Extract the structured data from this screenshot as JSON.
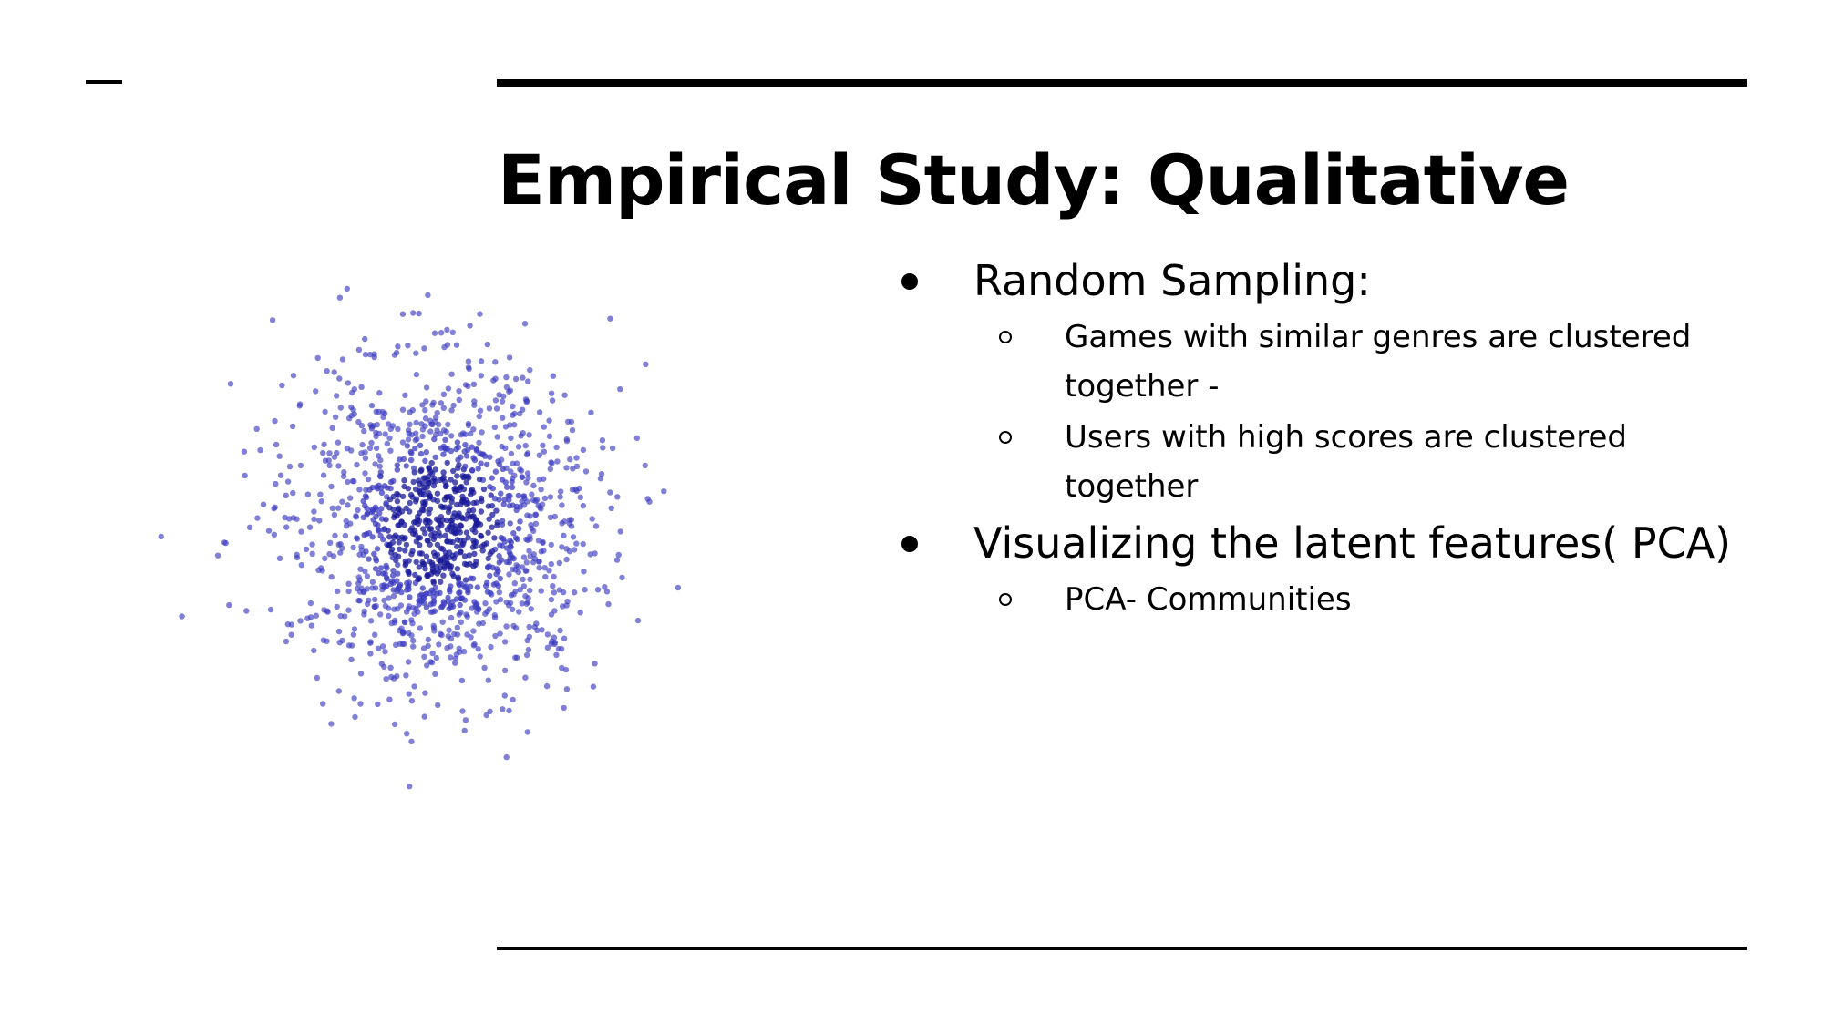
{
  "slide": {
    "title": "Empirical Study: Qualitative",
    "bullets": [
      {
        "text": "Random Sampling:",
        "sub": [
          {
            "line1": "Games with similar genres are clustered",
            "line2": "together -"
          },
          {
            "line1": "Users with high scores are  clustered",
            "line2": "together"
          }
        ]
      },
      {
        "text": "Visualizing the latent features( PCA)",
        "sub": [
          {
            "line1": "PCA- Communities",
            "line2": ""
          }
        ]
      }
    ]
  },
  "scatter": {
    "point_color": "#3c3cc0",
    "dense_color": "#1a1a9a",
    "point_count": 1400
  }
}
